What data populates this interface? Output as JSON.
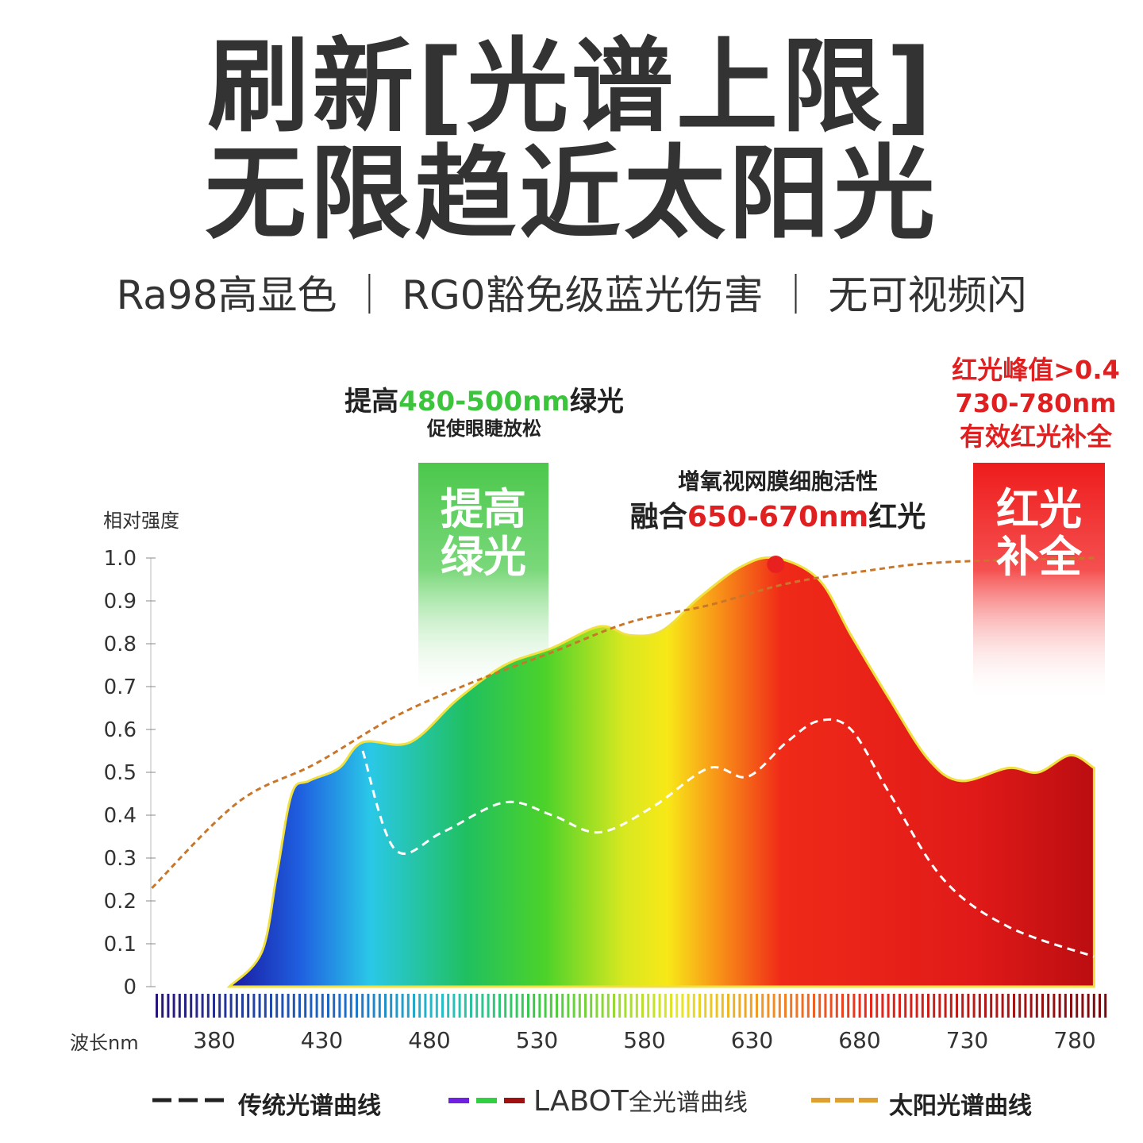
{
  "headline": {
    "line1": "刷新[光谱上限]",
    "line2": "无限趋近太阳光"
  },
  "subheadline": "Ra98高显色 ｜ RG0豁免级蓝光伤害 ｜ 无可视频闪",
  "annotations": {
    "green_title_prefix": "提高",
    "green_title_range": "480-500nm",
    "green_title_suffix": "绿光",
    "green_subtitle": "促使眼睫放松",
    "green_box_line1": "提高",
    "green_box_line2": "绿光",
    "retina_line1": "增氧视网膜细胞活性",
    "retina_prefix": "融合",
    "retina_range": "650-670nm",
    "retina_suffix": "红光",
    "red_line1": "红光峰值>0.4",
    "red_line2": "730-780nm",
    "red_line3": "有效红光补全",
    "red_box_line1": "红光",
    "red_box_line2": "补全"
  },
  "colors": {
    "green": "#3cc43c",
    "red": "#e02020",
    "sun": "#c8772a",
    "traditional": "#ffffff"
  },
  "chart_data": {
    "type": "area",
    "ylabel": "相对强度",
    "xlabel": "波长nm",
    "xlim": [
      351,
      789
    ],
    "ylim": [
      0,
      1.0
    ],
    "xticks": [
      "380",
      "430",
      "480",
      "530",
      "580",
      "630",
      "680",
      "730",
      "780"
    ],
    "yticks": [
      "0",
      "0.1",
      "0.2",
      "0.3",
      "0.4",
      "0.5",
      "0.6",
      "0.7",
      "0.8",
      "0.9",
      "1.0"
    ],
    "series": [
      {
        "name": "LABOT全光谱曲线",
        "style": "rainbow-filled",
        "x": [
          387,
          402,
          409,
          416,
          424,
          438,
          449,
          471,
          493,
          515,
          537,
          559,
          573,
          588,
          606,
          625,
          641,
          661,
          676,
          694,
          712,
          727,
          749,
          763,
          778,
          789
        ],
        "y": [
          0,
          0.08,
          0.26,
          0.45,
          0.48,
          0.51,
          0.57,
          0.57,
          0.67,
          0.75,
          0.79,
          0.84,
          0.82,
          0.83,
          0.91,
          0.98,
          1.0,
          0.95,
          0.82,
          0.67,
          0.53,
          0.48,
          0.51,
          0.5,
          0.54,
          0.51
        ]
      },
      {
        "name": "传统光谱曲线",
        "style": "white-dashed",
        "x": [
          449,
          464,
          486,
          515,
          537,
          559,
          584,
          610,
          628,
          646,
          661,
          676,
          694,
          719,
          749,
          789
        ],
        "y": [
          0.55,
          0.32,
          0.36,
          0.43,
          0.4,
          0.36,
          0.42,
          0.51,
          0.49,
          0.57,
          0.62,
          0.6,
          0.45,
          0.25,
          0.14,
          0.07
        ]
      },
      {
        "name": "太阳光谱曲线",
        "style": "orange-dashed",
        "x": [
          351,
          391,
          427,
          464,
          500,
          537,
          573,
          610,
          646,
          683,
          719,
          789
        ],
        "y": [
          0.23,
          0.43,
          0.52,
          0.63,
          0.71,
          0.78,
          0.85,
          0.89,
          0.94,
          0.97,
          0.99,
          1.0
        ]
      }
    ],
    "highlights": [
      {
        "range": [
          480,
          500
        ],
        "label": "提高绿光"
      },
      {
        "range": [
          730,
          780
        ],
        "label": "红光补全"
      }
    ],
    "legend": {
      "position": "bottom",
      "items": [
        "传统光谱曲线",
        "LABOT全光谱曲线",
        "太阳光谱曲线"
      ],
      "brand": "LABOT",
      "brand_suffix": "全光谱曲线"
    }
  }
}
